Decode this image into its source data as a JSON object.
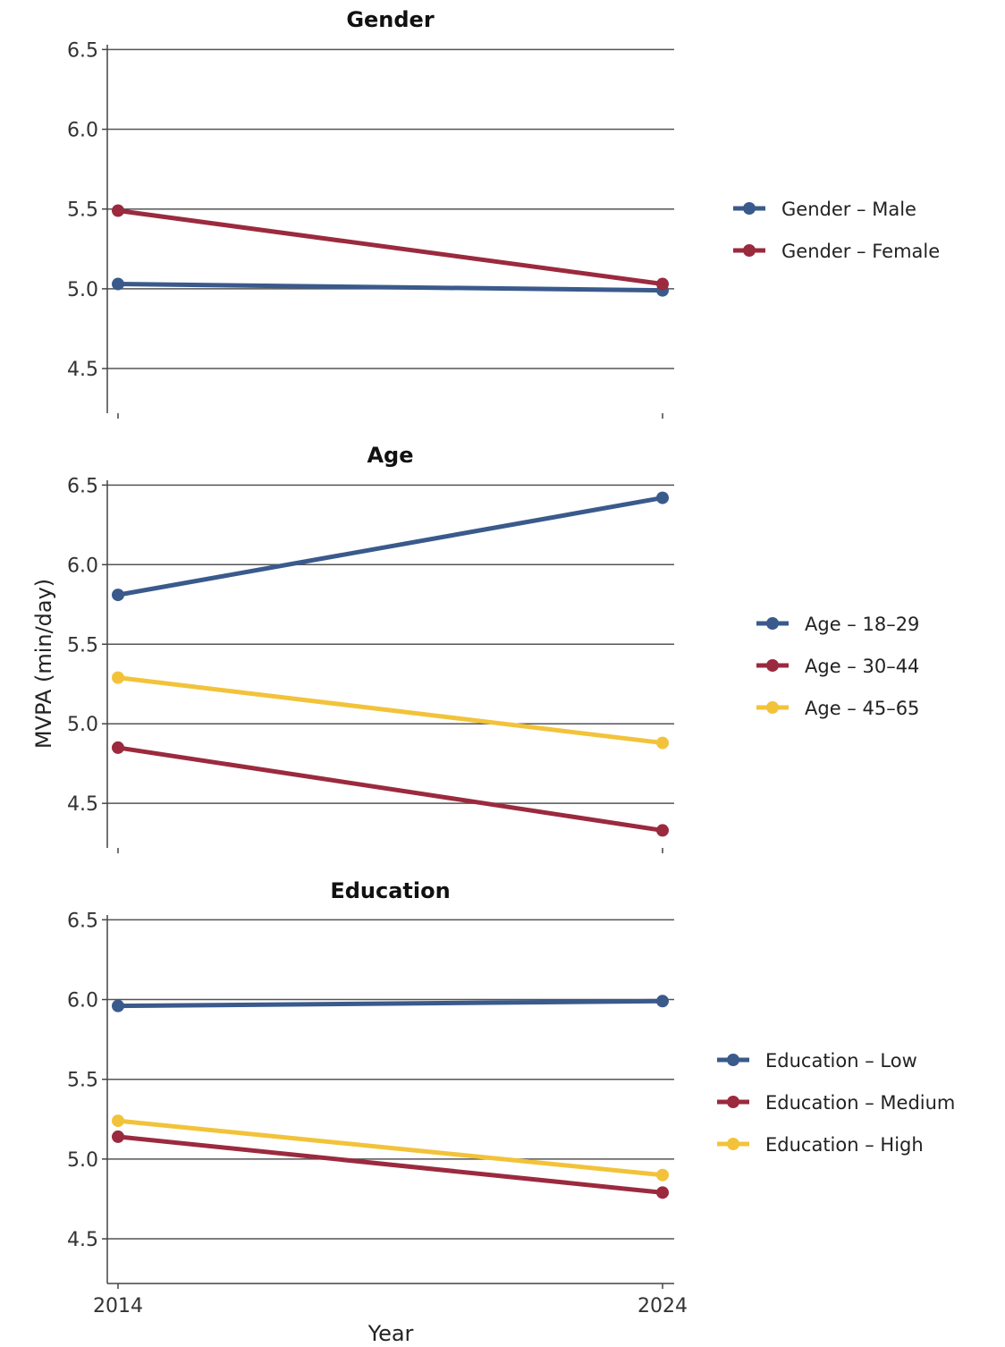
{
  "chart_data": {
    "type": "line",
    "ylabel": "MVPA (min/day)",
    "xlabel": "Year",
    "x": [
      "2014",
      "2024"
    ],
    "ylim": [
      4.22,
      6.53
    ],
    "yticks": [
      "6.5",
      "6.0",
      "5.5",
      "5.0",
      "4.5"
    ],
    "grid": true,
    "legend_position": "right",
    "colors": {
      "blue": "#3a5a8c",
      "red": "#9b2a3e",
      "yellow": "#f2c33a"
    },
    "panels": [
      {
        "title": "Gender",
        "series": [
          {
            "name": "Gender – Male",
            "color": "#3a5a8c",
            "values": [
              5.03,
              4.99
            ]
          },
          {
            "name": "Gender – Female",
            "color": "#9b2a3e",
            "values": [
              5.49,
              5.03
            ]
          }
        ]
      },
      {
        "title": "Age",
        "series": [
          {
            "name": "Age – 18–29",
            "color": "#3a5a8c",
            "values": [
              5.81,
              6.42
            ]
          },
          {
            "name": "Age – 30–44",
            "color": "#9b2a3e",
            "values": [
              4.85,
              4.33
            ]
          },
          {
            "name": "Age – 45–65",
            "color": "#f2c33a",
            "values": [
              5.29,
              4.88
            ]
          }
        ]
      },
      {
        "title": "Education",
        "series": [
          {
            "name": "Education – Low",
            "color": "#3a5a8c",
            "values": [
              5.96,
              5.99
            ]
          },
          {
            "name": "Education – Medium",
            "color": "#9b2a3e",
            "values": [
              5.14,
              4.79
            ]
          },
          {
            "name": "Education – High",
            "color": "#f2c33a",
            "values": [
              5.24,
              4.9
            ]
          }
        ]
      }
    ]
  }
}
